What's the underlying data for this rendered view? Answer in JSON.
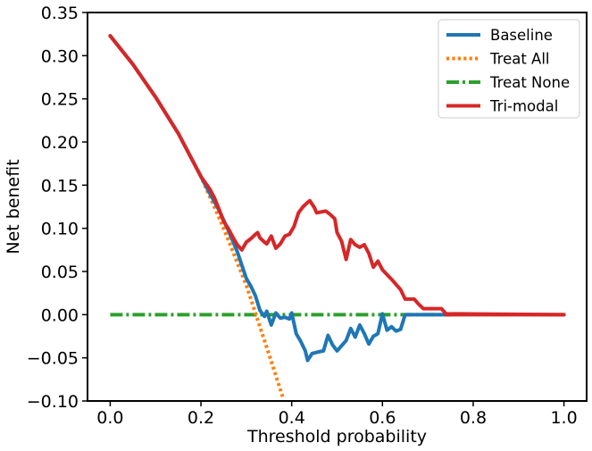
{
  "chart_data": {
    "type": "line",
    "title": "",
    "xlabel": "Threshold probability",
    "ylabel": "Net benefit",
    "xlim": [
      -0.05,
      1.05
    ],
    "ylim": [
      -0.1,
      0.35
    ],
    "x_ticks": [
      0.0,
      0.2,
      0.4,
      0.6,
      0.8,
      1.0
    ],
    "x_tick_labels": [
      "0.0",
      "0.2",
      "0.4",
      "0.6",
      "0.8",
      "1.0"
    ],
    "y_ticks": [
      -0.1,
      -0.05,
      0.0,
      0.05,
      0.1,
      0.15,
      0.2,
      0.25,
      0.3,
      0.35
    ],
    "y_tick_labels": [
      "−0.10",
      "−0.05",
      "0.00",
      "0.05",
      "0.10",
      "0.15",
      "0.20",
      "0.25",
      "0.30",
      "0.35"
    ],
    "grid": false,
    "legend_position": "top-right",
    "series": [
      {
        "name": "Baseline",
        "color": "#1f77b4",
        "style": "solid",
        "points": [
          [
            0.0,
            0.323
          ],
          [
            0.05,
            0.29
          ],
          [
            0.1,
            0.252
          ],
          [
            0.15,
            0.21
          ],
          [
            0.2,
            0.16
          ],
          [
            0.22,
            0.14
          ],
          [
            0.24,
            0.121
          ],
          [
            0.26,
            0.098
          ],
          [
            0.28,
            0.073
          ],
          [
            0.3,
            0.042
          ],
          [
            0.31,
            0.033
          ],
          [
            0.32,
            0.022
          ],
          [
            0.33,
            0.005
          ],
          [
            0.34,
            -0.002
          ],
          [
            0.345,
            0.004
          ],
          [
            0.355,
            -0.012
          ],
          [
            0.365,
            0.002
          ],
          [
            0.375,
            -0.004
          ],
          [
            0.385,
            -0.003
          ],
          [
            0.395,
            -0.005
          ],
          [
            0.4,
            0.002
          ],
          [
            0.41,
            -0.022
          ],
          [
            0.42,
            -0.031
          ],
          [
            0.43,
            -0.042
          ],
          [
            0.435,
            -0.053
          ],
          [
            0.445,
            -0.045
          ],
          [
            0.46,
            -0.043
          ],
          [
            0.47,
            -0.042
          ],
          [
            0.48,
            -0.024
          ],
          [
            0.49,
            -0.035
          ],
          [
            0.5,
            -0.042
          ],
          [
            0.51,
            -0.036
          ],
          [
            0.52,
            -0.03
          ],
          [
            0.53,
            -0.016
          ],
          [
            0.54,
            -0.026
          ],
          [
            0.55,
            -0.012
          ],
          [
            0.56,
            -0.022
          ],
          [
            0.57,
            -0.034
          ],
          [
            0.58,
            -0.025
          ],
          [
            0.59,
            -0.022
          ],
          [
            0.6,
            0.001
          ],
          [
            0.61,
            -0.018
          ],
          [
            0.62,
            -0.014
          ],
          [
            0.63,
            -0.019
          ],
          [
            0.64,
            -0.017
          ],
          [
            0.65,
            0.0
          ],
          [
            0.7,
            0.0
          ],
          [
            0.74,
            0.0
          ]
        ]
      },
      {
        "name": "Treat All",
        "color": "#ff7f0e",
        "style": "dotted",
        "points": [
          [
            0.0,
            0.323
          ],
          [
            0.05,
            0.29
          ],
          [
            0.1,
            0.252
          ],
          [
            0.15,
            0.21
          ],
          [
            0.2,
            0.16
          ],
          [
            0.25,
            0.1
          ],
          [
            0.3,
            0.034
          ],
          [
            0.35,
            -0.046
          ],
          [
            0.38,
            -0.095
          ]
        ]
      },
      {
        "name": "Treat None",
        "color": "#2ca02c",
        "style": "dashdot",
        "points": [
          [
            0.0,
            0.0
          ],
          [
            0.75,
            0.0
          ]
        ]
      },
      {
        "name": "Tri-modal",
        "color": "#d62728",
        "style": "solid",
        "points": [
          [
            0.0,
            0.323
          ],
          [
            0.05,
            0.29
          ],
          [
            0.1,
            0.252
          ],
          [
            0.15,
            0.21
          ],
          [
            0.2,
            0.16
          ],
          [
            0.22,
            0.145
          ],
          [
            0.23,
            0.135
          ],
          [
            0.24,
            0.122
          ],
          [
            0.25,
            0.108
          ],
          [
            0.26,
            0.1
          ],
          [
            0.27,
            0.09
          ],
          [
            0.28,
            0.081
          ],
          [
            0.29,
            0.075
          ],
          [
            0.3,
            0.084
          ],
          [
            0.31,
            0.088
          ],
          [
            0.32,
            0.093
          ],
          [
            0.325,
            0.095
          ],
          [
            0.33,
            0.089
          ],
          [
            0.34,
            0.084
          ],
          [
            0.345,
            0.082
          ],
          [
            0.355,
            0.091
          ],
          [
            0.365,
            0.077
          ],
          [
            0.375,
            0.082
          ],
          [
            0.385,
            0.091
          ],
          [
            0.395,
            0.093
          ],
          [
            0.405,
            0.102
          ],
          [
            0.415,
            0.118
          ],
          [
            0.425,
            0.125
          ],
          [
            0.435,
            0.13
          ],
          [
            0.44,
            0.132
          ],
          [
            0.45,
            0.124
          ],
          [
            0.455,
            0.118
          ],
          [
            0.465,
            0.119
          ],
          [
            0.475,
            0.12
          ],
          [
            0.485,
            0.116
          ],
          [
            0.495,
            0.111
          ],
          [
            0.5,
            0.095
          ],
          [
            0.51,
            0.085
          ],
          [
            0.52,
            0.064
          ],
          [
            0.53,
            0.087
          ],
          [
            0.54,
            0.081
          ],
          [
            0.55,
            0.078
          ],
          [
            0.56,
            0.081
          ],
          [
            0.57,
            0.071
          ],
          [
            0.58,
            0.055
          ],
          [
            0.59,
            0.062
          ],
          [
            0.6,
            0.052
          ],
          [
            0.62,
            0.041
          ],
          [
            0.64,
            0.029
          ],
          [
            0.65,
            0.018
          ],
          [
            0.67,
            0.018
          ],
          [
            0.68,
            0.012
          ],
          [
            0.69,
            0.007
          ],
          [
            0.72,
            0.007
          ],
          [
            0.73,
            0.007
          ],
          [
            0.74,
            0.001
          ],
          [
            1.0,
            0.0
          ]
        ]
      },
      {
        "name": "",
        "color": "#d62728",
        "style": "solid",
        "points": [
          [
            0.74,
            0.0
          ],
          [
            1.0,
            0.0
          ]
        ]
      }
    ]
  }
}
